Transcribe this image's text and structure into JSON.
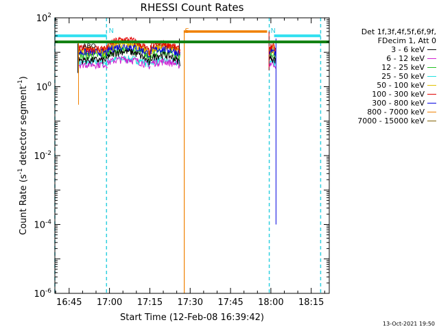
{
  "chart_data": {
    "type": "line",
    "title": "RHESSI Count Rates",
    "xlabel": "Start Time (12-Feb-08 16:39:42)",
    "ylabel_main": "Count Rate (s",
    "ylabel_sup": "-1",
    "ylabel_mid": " detector segment",
    "ylabel_end": ")",
    "y_scale": "log",
    "ylim": [
      1e-06,
      100
    ],
    "y_ticks": [
      {
        "value": 100,
        "mantissa": "10",
        "exp": "2"
      },
      {
        "value": 1,
        "mantissa": "10",
        "exp": "0"
      },
      {
        "value": 0.01,
        "mantissa": "10",
        "exp": "-2"
      },
      {
        "value": 0.0001,
        "mantissa": "10",
        "exp": "-4"
      },
      {
        "value": 1e-06,
        "mantissa": "10",
        "exp": "-6"
      }
    ],
    "x_unit": "minutes after 16:39:42",
    "xlim": [
      0,
      102
    ],
    "x_ticks": [
      {
        "value": 5.3,
        "label": "16:45"
      },
      {
        "value": 20.3,
        "label": "17:00"
      },
      {
        "value": 35.3,
        "label": "17:15"
      },
      {
        "value": 50.3,
        "label": "17:30"
      },
      {
        "value": 65.3,
        "label": "17:45"
      },
      {
        "value": 80.3,
        "label": "18:00"
      },
      {
        "value": 95.3,
        "label": "18:15"
      }
    ],
    "legend_header": [
      "Det 1f,3f,4f,5f,6f,9f,",
      "FDecim 1, Att 0"
    ],
    "series": [
      {
        "name": "3 - 6 keV",
        "color": "#000000"
      },
      {
        "name": "6 - 12 keV",
        "color": "#d020d0"
      },
      {
        "name": "12 - 25 keV",
        "color": "#20c020"
      },
      {
        "name": "25 - 50 keV",
        "color": "#20e0e0"
      },
      {
        "name": "50 - 100 keV",
        "color": "#e0c000"
      },
      {
        "name": "100 - 300 keV",
        "color": "#e00000"
      },
      {
        "name": "300 - 800 keV",
        "color": "#0000e0"
      },
      {
        "name": "800 - 7000 keV",
        "color": "#f08000"
      },
      {
        "name": "7000 - 15000 keV",
        "color": "#806000"
      }
    ],
    "flags": [
      {
        "label": "N",
        "color": "#30d0e0",
        "x": 19.5
      },
      {
        "label": "S",
        "color": "#f08000",
        "x": 47.8
      },
      {
        "label": "N",
        "color": "#30d0e0",
        "x": 79.7
      }
    ],
    "flag_levels": {
      "cyan_high": 30,
      "green": 20,
      "orange": 40
    },
    "dashed_lines_x": [
      0,
      19.2,
      79.7,
      98.8
    ],
    "timestamp": "13-Oct-2021 19:50",
    "annotation": "ABO"
  }
}
